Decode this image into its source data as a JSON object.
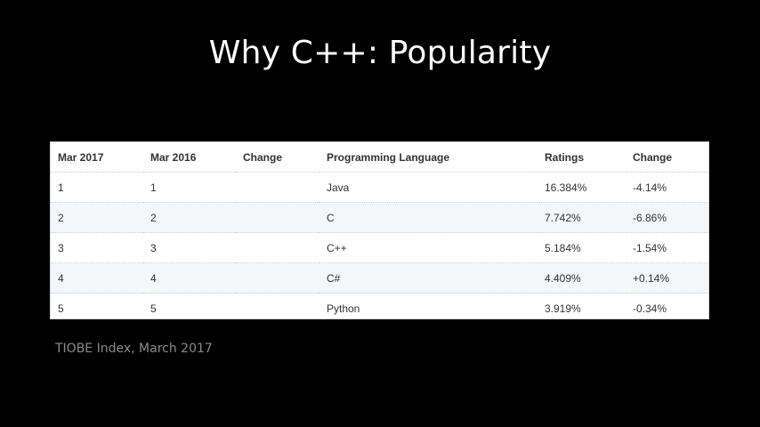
{
  "slide": {
    "title": "Why C++: Popularity",
    "caption": "TIOBE Index, March 2017"
  },
  "table": {
    "headers": [
      "Mar 2017",
      "Mar 2016",
      "Change",
      "Programming Language",
      "Ratings",
      "Change"
    ],
    "rows": [
      [
        "1",
        "1",
        "",
        "Java",
        "16.384%",
        "-4.14%"
      ],
      [
        "2",
        "2",
        "",
        "C",
        "7.742%",
        "-6.86%"
      ],
      [
        "3",
        "3",
        "",
        "C++",
        "5.184%",
        "-1.54%"
      ],
      [
        "4",
        "4",
        "",
        "C#",
        "4.409%",
        "+0.14%"
      ],
      [
        "5",
        "5",
        "",
        "Python",
        "3.919%",
        "-0.34%"
      ]
    ]
  },
  "colors": {
    "background": "#000000",
    "title": "#ffffff",
    "caption": "#8a8a8a",
    "table_background": "#ffffff",
    "table_alt_row": "#f5f6f8"
  }
}
